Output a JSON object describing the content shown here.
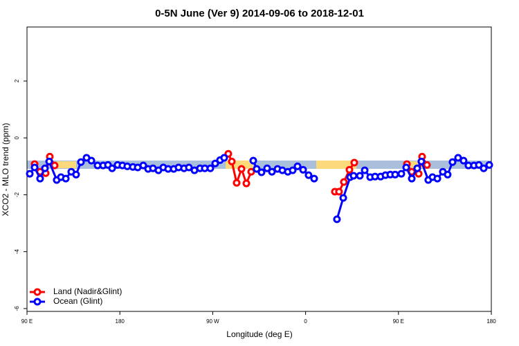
{
  "chart_data": {
    "type": "line",
    "title": "0-5N June (Ver 9)   2014-09-06 to 2018-12-01",
    "x_label": "Longitude (deg E)",
    "y_label": "XCO2 - MLO trend (ppm)",
    "xlim": [
      90,
      540
    ],
    "ylim": [
      -6.1,
      3.9
    ],
    "xticks": [
      {
        "value": 90,
        "label": "90 E"
      },
      180,
      {
        "value": 270,
        "label": "90 W"
      },
      {
        "value": 360,
        "label": "0"
      },
      {
        "value": 450,
        "label": "90 E"
      },
      {
        "value": 540,
        "label": "180"
      }
    ],
    "yticks": [
      -6,
      -4,
      -2,
      0,
      2
    ],
    "legend": "bottom-left",
    "series": [
      {
        "name": "Land (Nadir&Glint)",
        "color": "#ff0000",
        "x": [
          97.4,
          102.7,
          108.1,
          112.1,
          116.8,
          null,
          285.1,
          288.5,
          293.2,
          297.9,
          302.6,
          307.3,
          null,
          388.4,
          392.4,
          397.1,
          402.5,
          407.2,
          null,
          458.2,
          462.9,
          469.6,
          472.9,
          477.6
        ],
        "values": [
          -0.92,
          -1.19,
          -1.24,
          -0.66,
          -0.97,
          null,
          -0.56,
          -0.83,
          -1.58,
          -1.09,
          -1.6,
          -1.19,
          null,
          -1.89,
          -1.89,
          -1.55,
          -1.12,
          -0.87,
          null,
          -0.92,
          -1.19,
          -1.26,
          -0.66,
          -0.95
        ]
      },
      {
        "name": "Ocean (Glint)",
        "color": "#0000ff",
        "x": [
          92.7,
          97.4,
          102.7,
          107.4,
          111.5,
          118.8,
          122.9,
          127.6,
          132.9,
          137.6,
          142.3,
          147.7,
          152.4,
          158.4,
          163.8,
          168.5,
          172.5,
          177.8,
          182.5,
          187.2,
          192.6,
          197.3,
          202.7,
          207.4,
          212.1,
          217.4,
          222.1,
          226.8,
          232.2,
          236.9,
          242.2,
          246.9,
          252.3,
          257.7,
          262.3,
          267.7,
          272.4,
          277.1,
          281.1,
          null,
          309.3,
          312.6,
          317.3,
          322.7,
          327.4,
          332.8,
          337.5,
          342.8,
          347.5,
          352.2,
          357.6,
          362.9,
          368.3,
          null,
          390.4,
          396.5,
          403.2,
          406.5,
          412.6,
          417.3,
          422.6,
          427.3,
          432.7,
          437.4,
          442.1,
          446.8,
          452.8,
          457.5,
          462.9,
          468.2,
          472.2,
          478.9,
          483.0,
          487.7,
          493.0,
          497.7,
          502.4,
          507.8,
          513.1,
          517.8,
          523.2,
          527.9,
          532.6,
          538.0
        ],
        "values": [
          -1.26,
          -1.04,
          -1.43,
          -1.07,
          -0.83,
          -1.48,
          -1.38,
          -1.43,
          -1.19,
          -1.29,
          -0.85,
          -0.7,
          -0.8,
          -0.97,
          -0.97,
          -0.95,
          -1.07,
          -0.95,
          -0.97,
          -1.0,
          -1.02,
          -1.04,
          -0.97,
          -1.09,
          -1.07,
          -1.14,
          -1.04,
          -1.09,
          -1.09,
          -1.04,
          -1.07,
          -1.04,
          -1.14,
          -1.07,
          -1.07,
          -1.07,
          -0.9,
          -0.78,
          -0.7,
          null,
          -0.8,
          -1.09,
          -1.21,
          -1.07,
          -1.19,
          -1.09,
          -1.14,
          -1.19,
          -1.14,
          -1.0,
          -1.12,
          -1.31,
          -1.43,
          null,
          -2.86,
          -2.11,
          -1.38,
          -1.33,
          -1.33,
          -1.14,
          -1.38,
          -1.36,
          -1.36,
          -1.31,
          -1.29,
          -1.29,
          -1.26,
          -1.04,
          -1.43,
          -1.07,
          -0.83,
          -1.48,
          -1.38,
          -1.43,
          -1.19,
          -1.29,
          -0.85,
          -0.7,
          -0.8,
          -0.97,
          -0.97,
          -0.95,
          -1.07,
          -0.95
        ]
      }
    ]
  }
}
